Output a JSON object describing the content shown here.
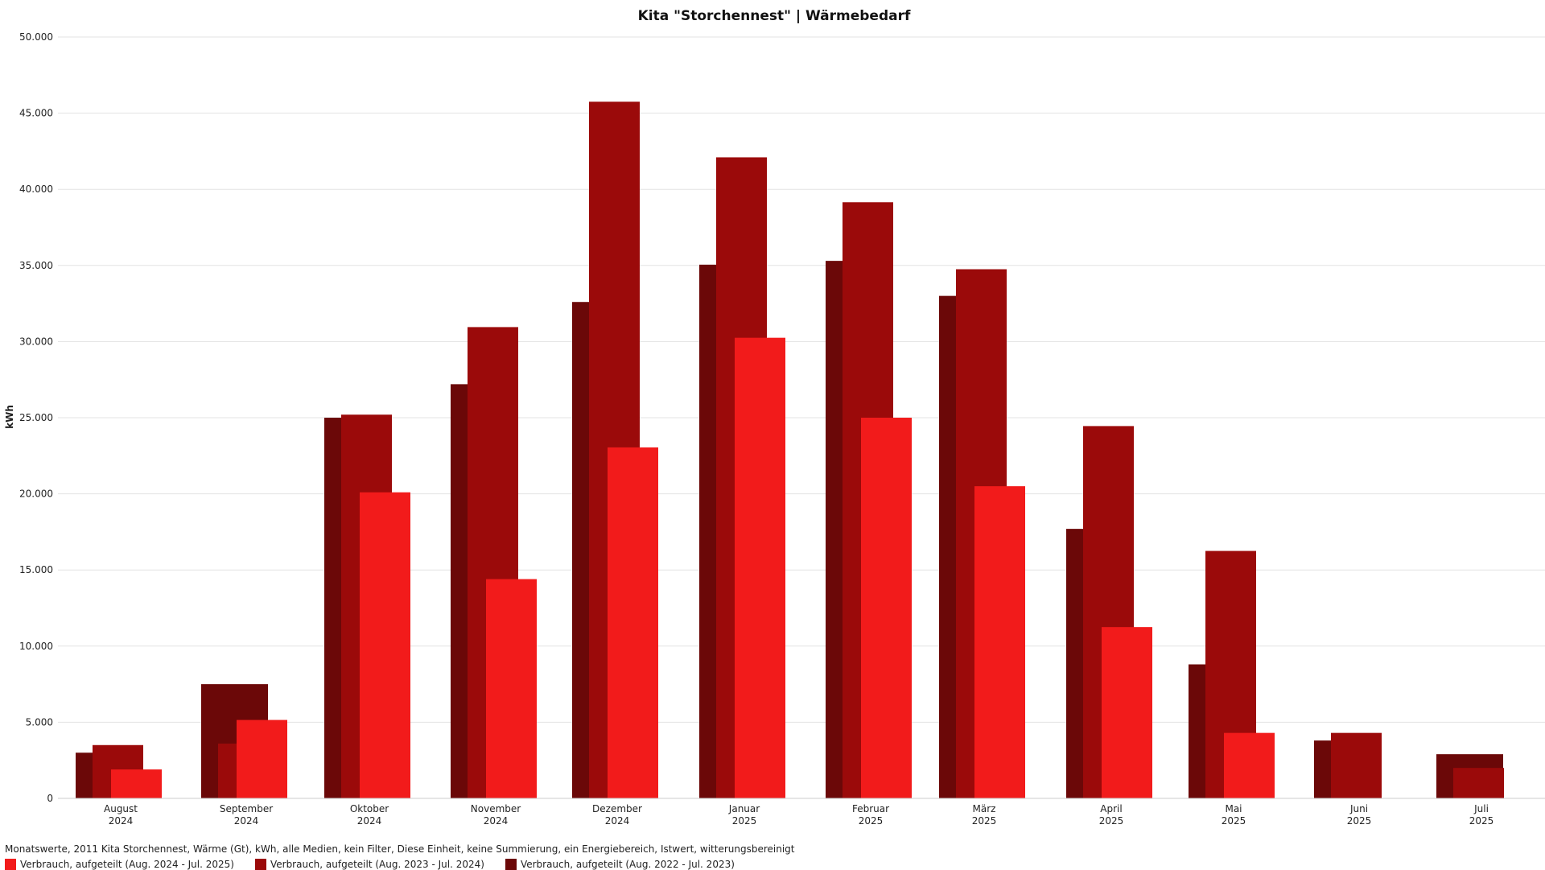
{
  "chart_data": {
    "type": "bar",
    "title": "Kita \"Storchennest\" | Wärmebedarf",
    "ylabel": "kWh",
    "xlabel": "",
    "ylim": [
      0,
      50000
    ],
    "yticks": [
      "0",
      "5.000",
      "10.000",
      "15.000",
      "20.000",
      "25.000",
      "30.000",
      "35.000",
      "40.000",
      "45.000",
      "50.000"
    ],
    "grid": true,
    "legend_position": "bottom-left",
    "categories": [
      {
        "month": "August",
        "year": "2024"
      },
      {
        "month": "September",
        "year": "2024"
      },
      {
        "month": "Oktober",
        "year": "2024"
      },
      {
        "month": "November",
        "year": "2024"
      },
      {
        "month": "Dezember",
        "year": "2024"
      },
      {
        "month": "Januar",
        "year": "2025"
      },
      {
        "month": "Februar",
        "year": "2025"
      },
      {
        "month": "März",
        "year": "2025"
      },
      {
        "month": "April",
        "year": "2025"
      },
      {
        "month": "Mai",
        "year": "2025"
      },
      {
        "month": "Juni",
        "year": "2025"
      },
      {
        "month": "Juli",
        "year": "2025"
      }
    ],
    "series": [
      {
        "name": "Verbrauch, aufgeteilt (Aug. 2022 - Jul. 2023)",
        "color": "#6b0808",
        "values": [
          3000,
          7500,
          25000,
          27200,
          32600,
          35050,
          35300,
          33000,
          17700,
          8800,
          3800,
          2900
        ]
      },
      {
        "name": "Verbrauch, aufgeteilt (Aug. 2023 - Jul. 2024)",
        "color": "#9b0a0a",
        "values": [
          3500,
          3600,
          25200,
          30950,
          45750,
          42100,
          39150,
          34750,
          24450,
          16250,
          4300,
          2000
        ]
      },
      {
        "name": "Verbrauch, aufgeteilt (Aug. 2024 - Jul. 2025)",
        "color": "#f21b1b",
        "values": [
          1900,
          5150,
          20100,
          14400,
          23050,
          30250,
          25000,
          20500,
          11250,
          4300,
          null,
          null
        ]
      }
    ]
  },
  "footer_text": "Monatswerte, 2011 Kita Storchennest, Wärme (Gt), kWh, alle Medien, kein Filter, Diese Einheit, keine Summierung, ein Energiebereich, Istwert, witterungsbereinigt",
  "legend": [
    {
      "label": "Verbrauch, aufgeteilt (Aug. 2024 - Jul. 2025)",
      "color": "#f21b1b"
    },
    {
      "label": "Verbrauch, aufgeteilt (Aug. 2023 - Jul. 2024)",
      "color": "#9b0a0a"
    },
    {
      "label": "Verbrauch, aufgeteilt (Aug. 2022 - Jul. 2023)",
      "color": "#6b0808"
    }
  ]
}
